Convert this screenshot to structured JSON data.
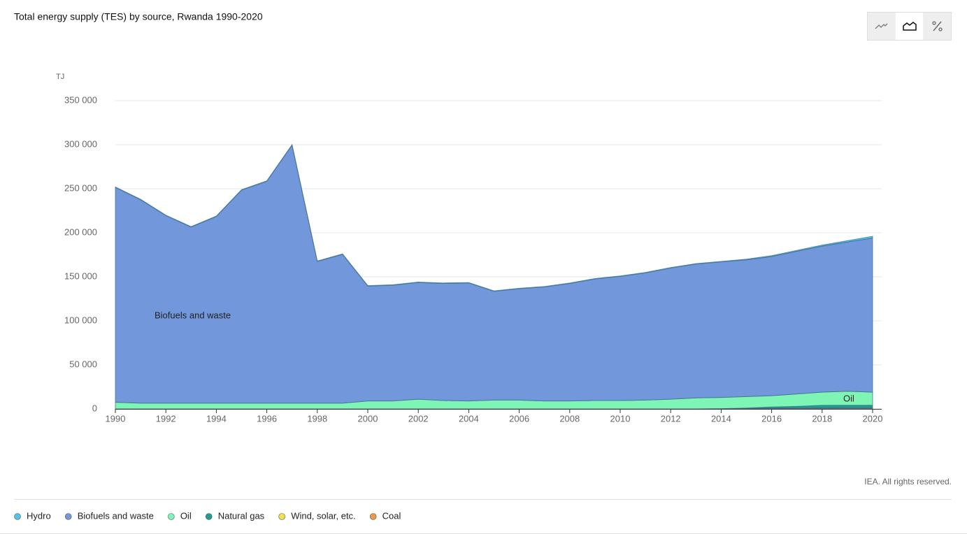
{
  "chart_data": {
    "type": "stacked_area",
    "title": "Total energy supply (TES) by source, Rwanda 1990-2020",
    "y_unit": "TJ",
    "credit": "IEA. All rights reserved.",
    "x": [
      1990,
      1991,
      1992,
      1993,
      1994,
      1995,
      1996,
      1997,
      1998,
      1999,
      2000,
      2001,
      2002,
      2003,
      2004,
      2005,
      2006,
      2007,
      2008,
      2009,
      2010,
      2011,
      2012,
      2013,
      2014,
      2015,
      2016,
      2017,
      2018,
      2019,
      2020
    ],
    "xlim": [
      1990,
      2020
    ],
    "xticks": [
      1990,
      1992,
      1994,
      1996,
      1998,
      2000,
      2002,
      2004,
      2006,
      2008,
      2010,
      2012,
      2014,
      2016,
      2018,
      2020
    ],
    "ylim": [
      0,
      350000
    ],
    "yticks": [
      0,
      {
        "value": 50000,
        "label": "50 000"
      },
      {
        "value": 100000,
        "label": "100 000"
      },
      {
        "value": 150000,
        "label": "150 000"
      },
      {
        "value": 200000,
        "label": "200 000"
      },
      {
        "value": 250000,
        "label": "250 000"
      },
      {
        "value": 300000,
        "label": "300 000"
      },
      {
        "value": 350000,
        "label": "350 000"
      }
    ],
    "grid": true,
    "series": [
      {
        "name": "Hydro",
        "color": "#4fc3e8",
        "values": [
          500,
          500,
          500,
          500,
          500,
          500,
          500,
          500,
          500,
          500,
          500,
          500,
          500,
          500,
          500,
          500,
          500,
          500,
          500,
          500,
          500,
          500,
          500,
          500,
          500,
          800,
          1000,
          1000,
          1200,
          1500,
          2000
        ]
      },
      {
        "name": "Biofuels and waste",
        "color": "#7397db",
        "values": [
          244000,
          231000,
          213000,
          200000,
          212000,
          242000,
          252000,
          293000,
          161000,
          169000,
          130500,
          131500,
          132500,
          133000,
          134000,
          123500,
          126500,
          129500,
          133500,
          138000,
          141000,
          144500,
          149000,
          152000,
          154000,
          155200,
          158000,
          162000,
          165800,
          169500,
          175000
        ]
      },
      {
        "name": "Oil",
        "color": "#7ff5b5",
        "values": [
          7500,
          6500,
          6500,
          6500,
          6500,
          6500,
          6500,
          6500,
          6500,
          6500,
          9000,
          9000,
          11000,
          9500,
          9000,
          10000,
          10000,
          9000,
          9000,
          9500,
          9500,
          10000,
          11000,
          12500,
          12700,
          13000,
          12800,
          14100,
          14900,
          15800,
          14800
        ]
      },
      {
        "name": "Natural gas",
        "color": "#1d9e8f",
        "values": [
          0,
          0,
          0,
          0,
          0,
          0,
          0,
          0,
          0,
          0,
          0,
          0,
          0,
          0,
          0,
          0,
          0,
          0,
          0,
          0,
          0,
          0,
          0,
          0,
          0,
          500,
          1500,
          2000,
          3000,
          3000,
          3000
        ]
      },
      {
        "name": "Wind, solar, etc.",
        "color": "#f5e04a",
        "values": [
          0,
          0,
          0,
          0,
          0,
          0,
          0,
          0,
          0,
          0,
          0,
          0,
          0,
          0,
          0,
          0,
          0,
          0,
          0,
          0,
          0,
          0,
          0,
          0,
          0,
          200,
          300,
          400,
          500,
          600,
          600
        ]
      },
      {
        "name": "Coal",
        "color": "#e89a4a",
        "values": [
          0,
          0,
          0,
          0,
          0,
          0,
          0,
          0,
          0,
          0,
          0,
          0,
          0,
          0,
          0,
          0,
          0,
          0,
          0,
          0,
          0,
          0,
          0,
          0,
          300,
          300,
          400,
          500,
          600,
          600,
          600
        ]
      }
    ],
    "annotations": [
      {
        "text": "Biofuels and waste",
        "series": 1
      },
      {
        "text": "Oil",
        "series": 2
      }
    ],
    "legend": "bottom-left"
  }
}
